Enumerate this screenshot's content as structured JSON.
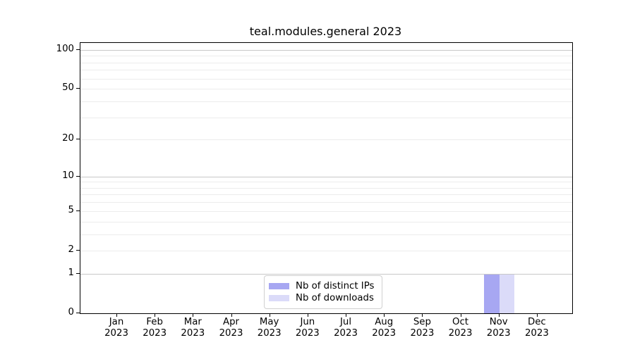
{
  "title": "teal.modules.general 2023",
  "chart_data": {
    "type": "bar",
    "title": "teal.modules.general 2023",
    "categories": [
      "Jan 2023",
      "Feb 2023",
      "Mar 2023",
      "Apr 2023",
      "May 2023",
      "Jun 2023",
      "Jul 2023",
      "Aug 2023",
      "Sep 2023",
      "Oct 2023",
      "Nov 2023",
      "Dec 2023"
    ],
    "series": [
      {
        "name": "Nb of distinct IPs",
        "color": "#a7a7f2",
        "values": [
          0,
          0,
          0,
          0,
          0,
          0,
          0,
          0,
          0,
          0,
          1,
          0
        ]
      },
      {
        "name": "Nb of downloads",
        "color": "#dbdbf9",
        "values": [
          0,
          0,
          0,
          0,
          0,
          0,
          0,
          0,
          0,
          0,
          1,
          0
        ]
      }
    ],
    "xlabel": "",
    "ylabel": "",
    "y_axis": {
      "scale": "log10(1+y)",
      "tick_labels": [
        0,
        1,
        2,
        5,
        10,
        20,
        50,
        100
      ],
      "major_gridlines": [
        1,
        10,
        100
      ],
      "minor_gridlines": [
        2,
        3,
        4,
        5,
        6,
        7,
        8,
        9,
        20,
        30,
        40,
        50,
        60,
        70,
        80,
        90
      ],
      "ylim": [
        0,
        113
      ]
    },
    "legend": {
      "position": "lower-center",
      "entries": [
        "Nb of distinct IPs",
        "Nb of downloads"
      ]
    },
    "colors": {
      "major_grid": "#c8c8c8",
      "minor_grid": "#ececec",
      "spine": "#000000",
      "legend_border": "#d0d0d0",
      "text": "#000000"
    }
  }
}
